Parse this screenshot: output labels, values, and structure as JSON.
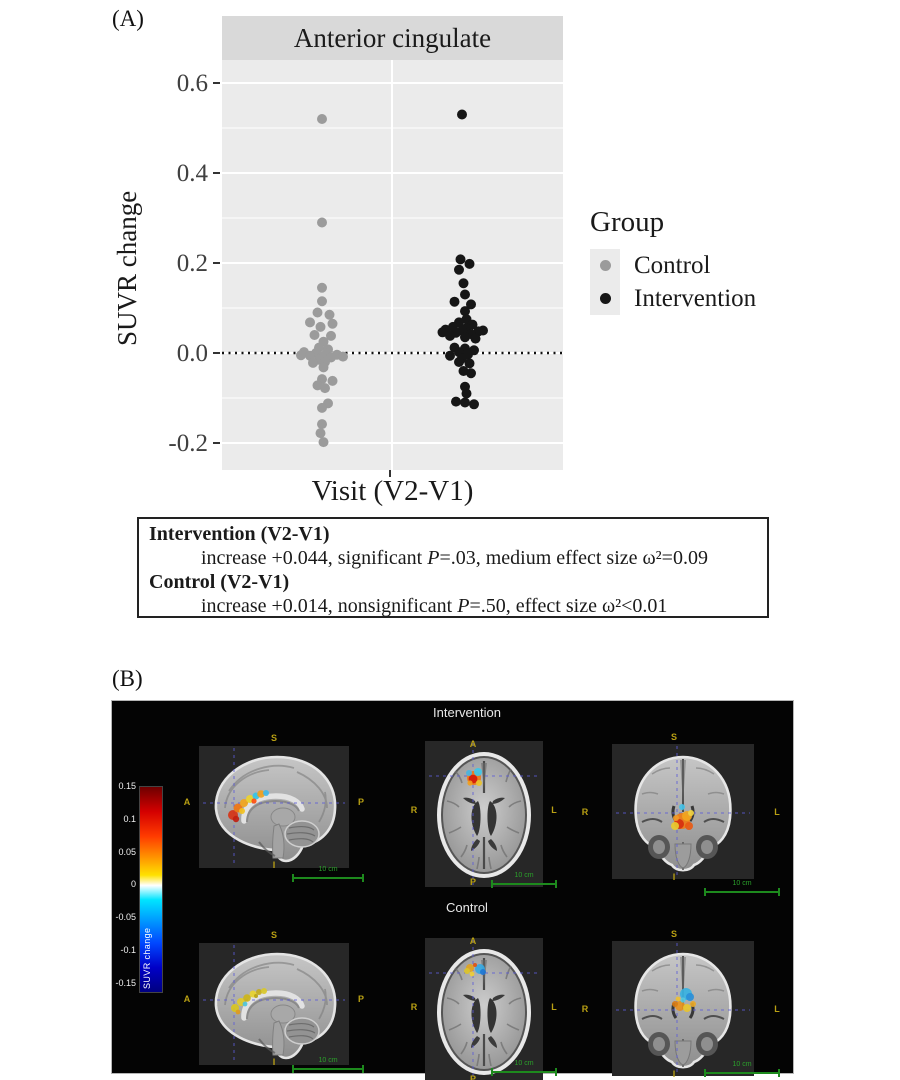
{
  "figure": {
    "panelA_label": "(A)",
    "panelB_label": "(B)"
  },
  "chart_data": {
    "type": "scatter",
    "title": "Anterior cingulate",
    "xlabel": "Visit (V2-V1)",
    "ylabel": "SUVR change",
    "ylim": [
      -0.26,
      0.65
    ],
    "yticks": [
      "0.6",
      "0.4",
      "0.2",
      "0.0",
      "-0.2"
    ],
    "ytick_values": [
      0.6,
      0.4,
      0.2,
      0.0,
      -0.2
    ],
    "minor_gridlines": [
      0.5,
      0.3,
      0.1,
      -0.1
    ],
    "zero_reference_line": 0.0,
    "grid": true,
    "legend": {
      "title": "Group",
      "position": "right"
    },
    "colors": {
      "plot_bg": "#ebebeb",
      "strip_bg": "#d9d9d9",
      "grid": "#ffffff"
    },
    "series": [
      {
        "name": "Control",
        "color": "#9b9b9b",
        "points": [
          [
            0,
            0.52
          ],
          [
            0,
            0.29
          ],
          [
            0,
            0.145
          ],
          [
            0,
            0.115
          ],
          [
            -3,
            0.09
          ],
          [
            5,
            0.085
          ],
          [
            -8,
            0.068
          ],
          [
            7,
            0.065
          ],
          [
            -1,
            0.058
          ],
          [
            -5,
            0.04
          ],
          [
            6,
            0.038
          ],
          [
            1,
            0.025
          ],
          [
            -2,
            0.012
          ],
          [
            4,
            0.008
          ],
          [
            -12,
            0.002
          ],
          [
            -4,
            0.0
          ],
          [
            3,
            -0.002
          ],
          [
            10,
            -0.004
          ],
          [
            -8,
            -0.006
          ],
          [
            0,
            -0.008
          ],
          [
            6,
            -0.01
          ],
          [
            -14,
            -0.005
          ],
          [
            14,
            -0.008
          ],
          [
            -2,
            -0.015
          ],
          [
            2,
            -0.02
          ],
          [
            -6,
            -0.022
          ],
          [
            1,
            -0.032
          ],
          [
            0,
            -0.058
          ],
          [
            7,
            -0.062
          ],
          [
            -3,
            -0.072
          ],
          [
            2,
            -0.078
          ],
          [
            4,
            -0.112
          ],
          [
            0,
            -0.122
          ],
          [
            0,
            -0.158
          ],
          [
            -1,
            -0.178
          ],
          [
            1,
            -0.198
          ]
        ]
      },
      {
        "name": "Intervention",
        "color": "#161616",
        "points": [
          [
            0,
            0.53
          ],
          [
            -1,
            0.208
          ],
          [
            5,
            0.198
          ],
          [
            -2,
            0.185
          ],
          [
            1,
            0.155
          ],
          [
            2,
            0.13
          ],
          [
            -5,
            0.114
          ],
          [
            6,
            0.108
          ],
          [
            2,
            0.093
          ],
          [
            3,
            0.075
          ],
          [
            -2,
            0.068
          ],
          [
            7,
            0.063
          ],
          [
            -6,
            0.058
          ],
          [
            3,
            0.055
          ],
          [
            -11,
            0.052
          ],
          [
            0,
            0.05
          ],
          [
            11,
            0.048
          ],
          [
            -4,
            0.045
          ],
          [
            6,
            0.042
          ],
          [
            -8,
            0.038
          ],
          [
            2,
            0.035
          ],
          [
            9,
            0.032
          ],
          [
            -13,
            0.046
          ],
          [
            14,
            0.05
          ],
          [
            -5,
            0.012
          ],
          [
            2,
            0.01
          ],
          [
            8,
            0.006
          ],
          [
            -2,
            0.002
          ],
          [
            4,
            -0.003
          ],
          [
            -8,
            -0.006
          ],
          [
            0,
            -0.012
          ],
          [
            -2,
            -0.02
          ],
          [
            5,
            -0.023
          ],
          [
            1,
            -0.04
          ],
          [
            6,
            -0.045
          ],
          [
            2,
            -0.075
          ],
          [
            3,
            -0.09
          ],
          [
            -4,
            -0.108
          ],
          [
            2,
            -0.11
          ],
          [
            8,
            -0.114
          ]
        ]
      }
    ]
  },
  "stats_box": {
    "lines": [
      {
        "style": "heading",
        "text": "Intervention (V2-V1)"
      },
      {
        "style": "detail",
        "text": "increase +0.044, significant P=.03, medium effect size ω²=0.09"
      },
      {
        "style": "heading",
        "text": "Control (V2-V1)"
      },
      {
        "style": "detail",
        "text": "increase +0.014, nonsignificant P=.50, effect size ω²<0.01"
      }
    ]
  },
  "panelB": {
    "row_titles": [
      "Intervention",
      "Control"
    ],
    "colorbar": {
      "label": "SUVR change",
      "tick_labels": [
        "0.15",
        "0.1",
        "0.05",
        "0",
        "-0.05",
        "-0.1",
        "-0.15"
      ],
      "gradient_stops": [
        "#6e0000 0%",
        "#d40000 12%",
        "#ff3b00 24%",
        "#ff9100 34%",
        "#ffe100 43%",
        "#ffffff 48%",
        "#00e5ff 55%",
        "#00a2ff 64%",
        "#0048ff 76%",
        "#0000c8 88%",
        "#000080 100%"
      ]
    },
    "scalebar_label": "10 cm",
    "orientation": {
      "sagittal": {
        "top": "S",
        "left": "A",
        "right": "P",
        "bottom": "I"
      },
      "axial": {
        "top": "A",
        "left": "R",
        "right": "L",
        "bottom": "P"
      },
      "coronal": {
        "top": "S",
        "left": "R",
        "right": "L",
        "bottom": "I"
      }
    }
  }
}
